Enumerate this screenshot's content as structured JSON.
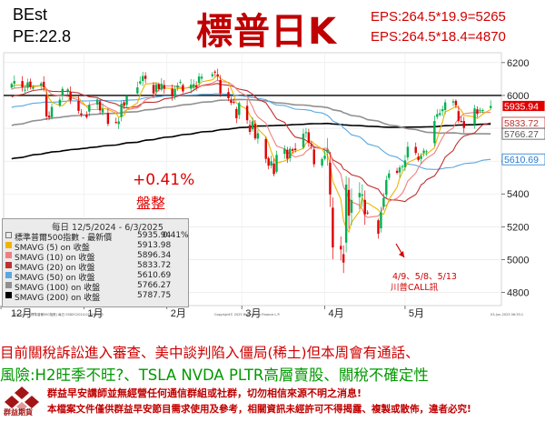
{
  "header": {
    "best": "BEst",
    "pe": "PE:22.8",
    "title": "標普日K",
    "eps_lines": [
      "EPS:264.5*19.9=5265",
      "EPS:264.5*18.4=4870"
    ]
  },
  "annotations": {
    "change": "+0.41%",
    "state": "盤整",
    "note_dates": "4/9、5/8、5/13",
    "note_text": "川普CALL訊"
  },
  "legend": {
    "title": "每日 12/5/2024 - 6/3/2025",
    "rows": [
      {
        "name": "標準普爾500指數 - 最新價",
        "value": "5935.94",
        "pct": "0.41%",
        "color": "#ffffff"
      },
      {
        "name": "SMAVG (5)  on 收盤",
        "value": "5913.98",
        "pct": "",
        "color": "#f0b400"
      },
      {
        "name": "SMAVG (10)  on 收盤",
        "value": "5896.34",
        "pct": "",
        "color": "#f08080"
      },
      {
        "name": "SMAVG (20)  on 收盤",
        "value": "5833.72",
        "pct": "",
        "color": "#c03030"
      },
      {
        "name": "SMAVG (50)  on 收盤",
        "value": "5610.69",
        "pct": "",
        "color": "#5aa8e0"
      },
      {
        "name": "SMAVG (100)  on 收盤",
        "value": "5766.27",
        "pct": "",
        "color": "#909090"
      },
      {
        "name": "SMAVG (200)  on 收盤",
        "value": "5787.75",
        "pct": "",
        "color": "#000000"
      }
    ]
  },
  "footer_small": {
    "left": "SPX Index (標準普爾500指數) 每日 05DEC2024-03JUN2025",
    "center": "Copyright© 2025 Bloomberg Finance L.P.",
    "right": "03-Jun-2025 06:35:1"
  },
  "commentary": {
    "line1": "目前關稅訴訟進入審查、美中談判陷入僵局(稀土)但本周會有通話、",
    "line2": "風險:H2旺季不旺?、TSLA NVDA PLTR高層賣股、關稅不確定性"
  },
  "disclaimer": {
    "logo_text": "群益期貨",
    "line1": "群益早安講師並無經營任何通信群組或社群，切勿相信來源不明之消息!",
    "line2": "本檔案文件僅供群益早安節目需求使用及參考，相關資訊未經許可不得揭露、複製或散佈，違者必究!"
  },
  "chart_data": {
    "type": "candlestick",
    "x_tick_labels": [
      "12月",
      "1月",
      "2月",
      "3月",
      "4月",
      "5月"
    ],
    "x_year_labels": [
      "2024",
      "2025"
    ],
    "y_tick_labels": [
      "4800",
      "5000",
      "5200",
      "5400",
      "5600",
      "5800",
      "6000",
      "6200"
    ],
    "ylim": [
      4720,
      6260
    ],
    "colors": {
      "up": "#00b050",
      "down": "#e00000",
      "resistance": "#000000"
    },
    "resistance_level": 6000,
    "price_tags": [
      {
        "label": "5935.94",
        "value": 5935.94,
        "bg": "#e00000",
        "fg": "#ffffff"
      },
      {
        "label": "5833.72",
        "value": 5833.72,
        "bg": "#ffffff",
        "fg": "#c03030"
      },
      {
        "label": "5766.27",
        "value": 5766.27,
        "bg": "#ffffff",
        "fg": "#555555"
      },
      {
        "label": "5610.69",
        "value": 5610.69,
        "bg": "#ffffff",
        "fg": "#1f77d0"
      }
    ],
    "anchors": [
      [
        "2024-12-05",
        6070
      ],
      [
        "2024-12-06",
        6088
      ],
      [
        "2024-12-09",
        6050
      ],
      [
        "2024-12-10",
        6035
      ],
      [
        "2024-12-11",
        6080
      ],
      [
        "2024-12-12",
        6050
      ],
      [
        "2024-12-13",
        6051
      ],
      [
        "2024-12-16",
        6074
      ],
      [
        "2024-12-17",
        6050
      ],
      [
        "2024-12-18",
        5872
      ],
      [
        "2024-12-19",
        5867
      ],
      [
        "2024-12-20",
        5930
      ],
      [
        "2024-12-23",
        5974
      ],
      [
        "2024-12-24",
        6040
      ],
      [
        "2024-12-26",
        6037
      ],
      [
        "2024-12-27",
        5970
      ],
      [
        "2024-12-30",
        5906
      ],
      [
        "2024-12-31",
        5882
      ],
      [
        "2025-01-02",
        5868
      ],
      [
        "2025-01-03",
        5942
      ],
      [
        "2025-01-06",
        5975
      ],
      [
        "2025-01-07",
        5909
      ],
      [
        "2025-01-08",
        5918
      ],
      [
        "2025-01-10",
        5827
      ],
      [
        "2025-01-13",
        5836
      ],
      [
        "2025-01-14",
        5842
      ],
      [
        "2025-01-15",
        5949
      ],
      [
        "2025-01-16",
        5937
      ],
      [
        "2025-01-17",
        5996
      ],
      [
        "2025-01-21",
        6049
      ],
      [
        "2025-01-22",
        6086
      ],
      [
        "2025-01-23",
        6118
      ],
      [
        "2025-01-24",
        6101
      ],
      [
        "2025-01-27",
        6012
      ],
      [
        "2025-01-28",
        6067
      ],
      [
        "2025-01-29",
        6039
      ],
      [
        "2025-01-30",
        6071
      ],
      [
        "2025-01-31",
        6040
      ],
      [
        "2025-02-03",
        5994
      ],
      [
        "2025-02-04",
        6037
      ],
      [
        "2025-02-05",
        6061
      ],
      [
        "2025-02-06",
        6083
      ],
      [
        "2025-02-07",
        6025
      ],
      [
        "2025-02-10",
        6066
      ],
      [
        "2025-02-11",
        6068
      ],
      [
        "2025-02-12",
        6051
      ],
      [
        "2025-02-13",
        6115
      ],
      [
        "2025-02-14",
        6114
      ],
      [
        "2025-02-18",
        6129
      ],
      [
        "2025-02-19",
        6144
      ],
      [
        "2025-02-20",
        6117
      ],
      [
        "2025-02-21",
        6013
      ],
      [
        "2025-02-24",
        5983
      ],
      [
        "2025-02-25",
        5955
      ],
      [
        "2025-02-26",
        5956
      ],
      [
        "2025-02-27",
        5861
      ],
      [
        "2025-02-28",
        5954
      ],
      [
        "2025-03-03",
        5849
      ],
      [
        "2025-03-04",
        5778
      ],
      [
        "2025-03-05",
        5842
      ],
      [
        "2025-03-06",
        5738
      ],
      [
        "2025-03-07",
        5770
      ],
      [
        "2025-03-10",
        5614
      ],
      [
        "2025-03-11",
        5572
      ],
      [
        "2025-03-12",
        5599
      ],
      [
        "2025-03-13",
        5521
      ],
      [
        "2025-03-14",
        5638
      ],
      [
        "2025-03-17",
        5675
      ],
      [
        "2025-03-18",
        5615
      ],
      [
        "2025-03-19",
        5675
      ],
      [
        "2025-03-20",
        5663
      ],
      [
        "2025-03-21",
        5667
      ],
      [
        "2025-03-24",
        5767
      ],
      [
        "2025-03-25",
        5776
      ],
      [
        "2025-03-26",
        5712
      ],
      [
        "2025-03-27",
        5693
      ],
      [
        "2025-03-28",
        5581
      ],
      [
        "2025-03-31",
        5612
      ],
      [
        "2025-04-01",
        5633
      ],
      [
        "2025-04-02",
        5671
      ],
      [
        "2025-04-03",
        5397
      ],
      [
        "2025-04-04",
        5074
      ],
      [
        "2025-04-07",
        5062
      ],
      [
        "2025-04-08",
        4982
      ],
      [
        "2025-04-09",
        5457
      ],
      [
        "2025-04-10",
        5268
      ],
      [
        "2025-04-11",
        5363
      ],
      [
        "2025-04-14",
        5406
      ],
      [
        "2025-04-15",
        5397
      ],
      [
        "2025-04-16",
        5276
      ],
      [
        "2025-04-17",
        5283
      ],
      [
        "2025-04-21",
        5158
      ],
      [
        "2025-04-22",
        5288
      ],
      [
        "2025-04-23",
        5376
      ],
      [
        "2025-04-24",
        5485
      ],
      [
        "2025-04-25",
        5525
      ],
      [
        "2025-04-28",
        5529
      ],
      [
        "2025-04-29",
        5561
      ],
      [
        "2025-04-30",
        5569
      ],
      [
        "2025-05-01",
        5604
      ],
      [
        "2025-05-02",
        5687
      ],
      [
        "2025-05-05",
        5650
      ],
      [
        "2025-05-06",
        5607
      ],
      [
        "2025-05-07",
        5631
      ],
      [
        "2025-05-08",
        5664
      ],
      [
        "2025-05-09",
        5660
      ],
      [
        "2025-05-12",
        5844
      ],
      [
        "2025-05-13",
        5886
      ],
      [
        "2025-05-14",
        5892
      ],
      [
        "2025-05-15",
        5916
      ],
      [
        "2025-05-16",
        5958
      ],
      [
        "2025-05-19",
        5964
      ],
      [
        "2025-05-20",
        5940
      ],
      [
        "2025-05-21",
        5845
      ],
      [
        "2025-05-22",
        5842
      ],
      [
        "2025-05-23",
        5802
      ],
      [
        "2025-05-27",
        5921
      ],
      [
        "2025-05-28",
        5888
      ],
      [
        "2025-05-29",
        5912
      ],
      [
        "2025-05-30",
        5911
      ],
      [
        "2025-06-02",
        5936
      ]
    ],
    "sma_series": [
      {
        "name": "SMAVG (5)",
        "color": "#f0b400",
        "period": 5
      },
      {
        "name": "SMAVG (10)",
        "color": "#f08080",
        "period": 10
      },
      {
        "name": "SMAVG (20)",
        "color": "#c03030",
        "period": 20
      },
      {
        "name": "SMAVG (50)",
        "color": "#5aa8e0",
        "period": 50
      },
      {
        "name": "SMAVG (100)",
        "color": "#909090",
        "period": 100
      },
      {
        "name": "SMAVG (200)",
        "color": "#000000",
        "period": 200
      }
    ]
  }
}
